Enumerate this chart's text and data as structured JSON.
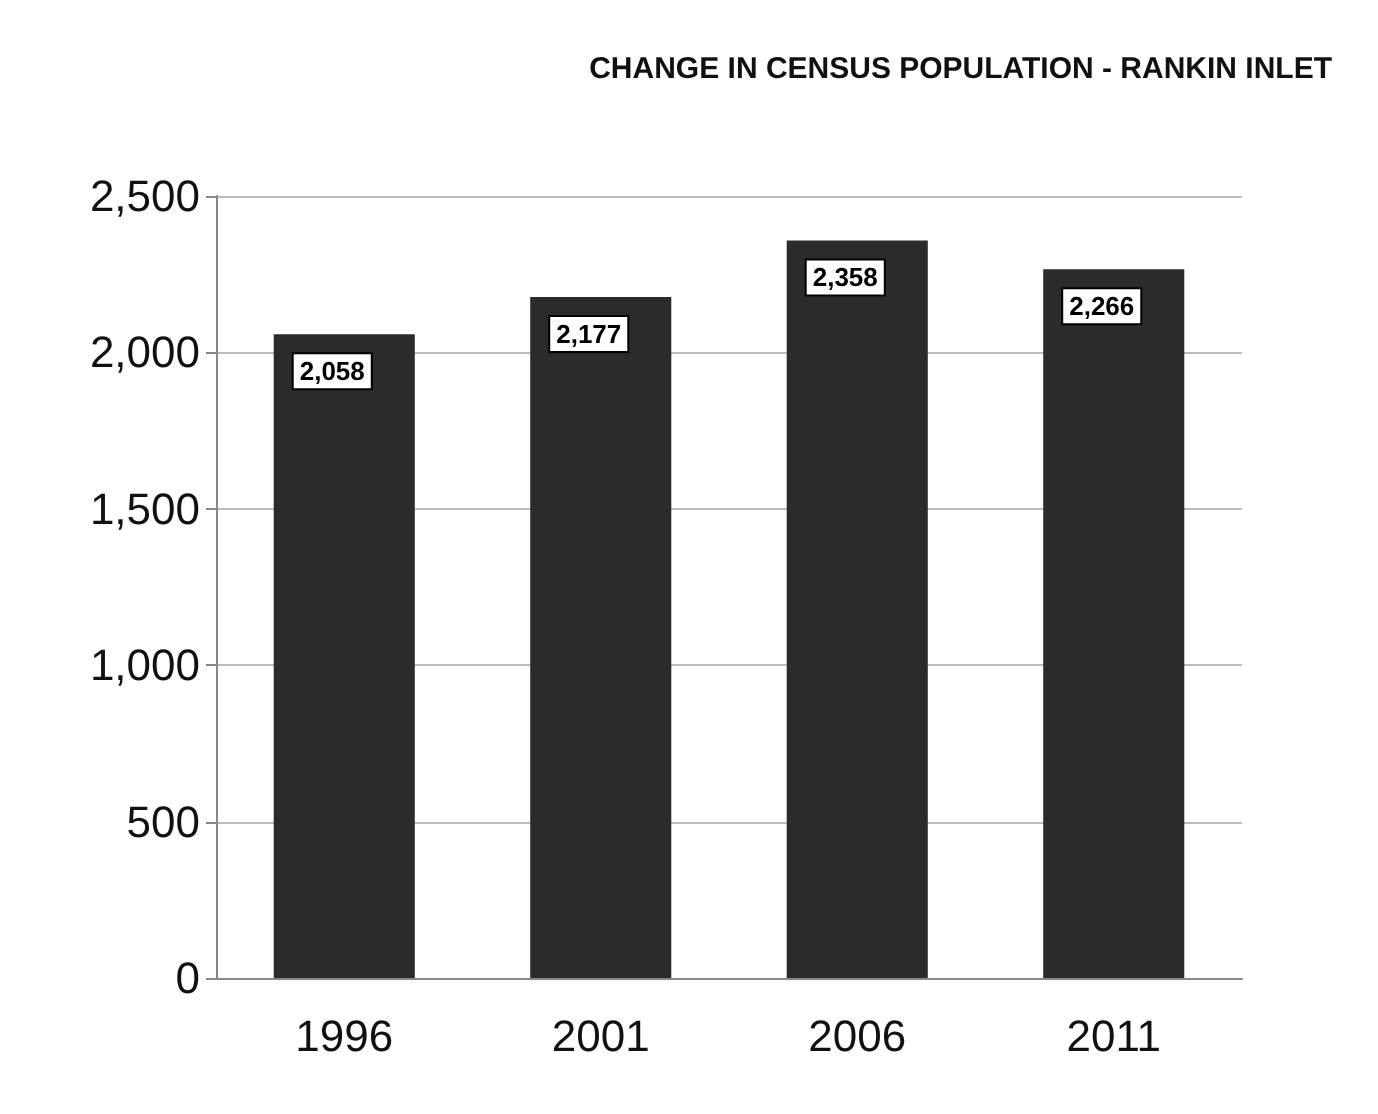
{
  "chart_data": {
    "type": "bar",
    "title": "CHANGE IN CENSUS POPULATION - RANKIN INLET",
    "categories": [
      "1996",
      "2001",
      "2006",
      "2011"
    ],
    "values": [
      2058,
      2177,
      2358,
      2266
    ],
    "value_labels": [
      "2,058",
      "2,177",
      "2,358",
      "2,266"
    ],
    "color": "#2b2b2b",
    "ylim": [
      0,
      2500
    ],
    "yticks": [
      0,
      500,
      {
        "value": 1000,
        "label": "1,000"
      },
      {
        "value": 1500,
        "label": "1,500"
      },
      {
        "value": 2000,
        "label": "2,000"
      },
      {
        "value": 2500,
        "label": "2,500"
      }
    ],
    "grid": "y"
  }
}
